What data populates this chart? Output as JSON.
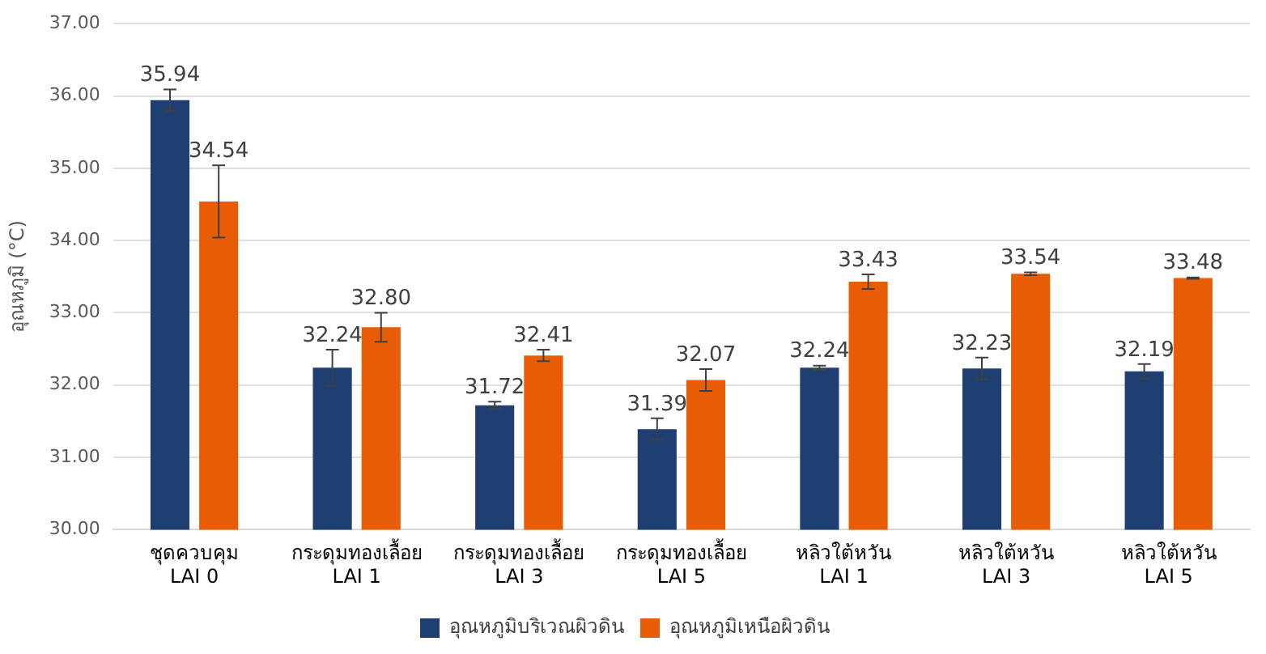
{
  "chart_data": {
    "type": "bar",
    "ylabel": "อุณหภูมิ (°C)",
    "categories": [
      "ชุดควบคุม\nLAI 0",
      "กระดุมทองเลื้อย\nLAI 1",
      "กระดุมทองเลื้อย\nLAI 3",
      "กระดุมทองเลื้อย\nLAI 5",
      "หลิวใต้หวัน\nLAI 1",
      "หลิวใต้หวัน\nLAI 3",
      "หลิวใต้หวัน\nLAI 5"
    ],
    "series": [
      {
        "name": "อุณหภูมิบริเวณผิวดิน",
        "color": "#1f3f73",
        "values": [
          35.94,
          32.24,
          31.72,
          31.39,
          32.24,
          32.23,
          32.19
        ],
        "value_labels": [
          "35.94",
          "32.24",
          "31.72",
          "31.39",
          "32.24",
          "32.23",
          "32.19"
        ],
        "errors": [
          0.15,
          0.25,
          0.05,
          0.15,
          0.03,
          0.15,
          0.1
        ]
      },
      {
        "name": "อุณหภูมิเหนือผิวดิน",
        "color": "#e85d04",
        "values": [
          34.54,
          32.8,
          32.41,
          32.07,
          33.43,
          33.54,
          33.48
        ],
        "value_labels": [
          "34.54",
          "32.80",
          "32.41",
          "32.07",
          "33.43",
          "33.54",
          "33.48"
        ],
        "errors": [
          0.5,
          0.2,
          0.08,
          0.15,
          0.1,
          0.02,
          0.01
        ]
      }
    ],
    "ylim": [
      30,
      37
    ],
    "yticks": [
      {
        "value": 30,
        "label": "30.00"
      },
      {
        "value": 31,
        "label": "31.00"
      },
      {
        "value": 32,
        "label": "32.00"
      },
      {
        "value": 33,
        "label": "33.00"
      },
      {
        "value": 34,
        "label": "34.00"
      },
      {
        "value": 35,
        "label": "35.00"
      },
      {
        "value": 36,
        "label": "36.00"
      },
      {
        "value": 37,
        "label": "37.00"
      }
    ],
    "grid": "y",
    "legend": "bottom"
  }
}
